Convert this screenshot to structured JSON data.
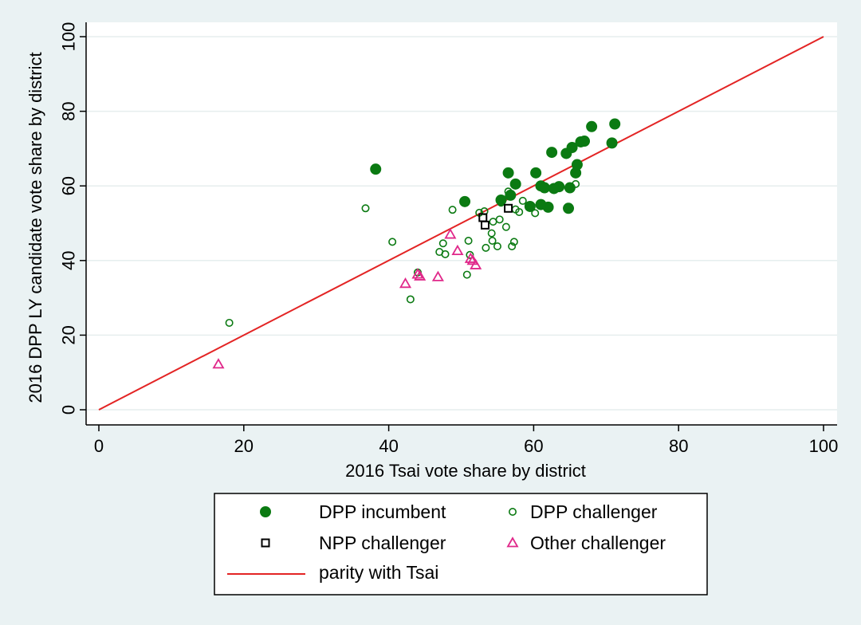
{
  "chart_data": {
    "type": "scatter",
    "title": "",
    "xlabel": "2016 Tsai vote share by district",
    "ylabel": "2016 DPP LY candidate vote share by district",
    "xlim": [
      0,
      100
    ],
    "ylim": [
      0,
      100
    ],
    "xticks": [
      "0",
      "20",
      "40",
      "60",
      "80",
      "100"
    ],
    "yticks": [
      "0",
      "20",
      "40",
      "60",
      "80",
      "100"
    ],
    "grid": "horizontal",
    "legend_position": "bottom",
    "colors": {
      "background": "#eaf2f3",
      "plot_background": "#ffffff",
      "dpp": "#0b7a12",
      "npp": "#000000",
      "other": "#e0288a",
      "parity": "#e32424"
    },
    "series": [
      {
        "name": "DPP incumbent",
        "marker": "filled-circle",
        "points": [
          [
            38.2,
            64.5
          ],
          [
            50.5,
            55.8
          ],
          [
            55.5,
            56.2
          ],
          [
            56.5,
            63.5
          ],
          [
            57.5,
            60.5
          ],
          [
            56.8,
            57.5
          ],
          [
            60.3,
            63.5
          ],
          [
            61.0,
            60.0
          ],
          [
            61.5,
            59.5
          ],
          [
            62.0,
            54.3
          ],
          [
            59.5,
            54.5
          ],
          [
            61.0,
            55.0
          ],
          [
            62.5,
            69.0
          ],
          [
            63.5,
            59.8
          ],
          [
            62.8,
            59.3
          ],
          [
            64.5,
            68.7
          ],
          [
            65.3,
            70.3
          ],
          [
            65.0,
            59.5
          ],
          [
            64.8,
            54.0
          ],
          [
            65.8,
            63.5
          ],
          [
            66.0,
            65.7
          ],
          [
            66.5,
            71.8
          ],
          [
            67.0,
            72.0
          ],
          [
            68.0,
            75.9
          ],
          [
            70.8,
            71.5
          ],
          [
            71.2,
            76.6
          ]
        ]
      },
      {
        "name": "DPP challenger",
        "marker": "hollow-circle",
        "points": [
          [
            18.0,
            23.3
          ],
          [
            36.8,
            54.0
          ],
          [
            40.5,
            45.0
          ],
          [
            43.0,
            29.6
          ],
          [
            44.0,
            36.8
          ],
          [
            47.0,
            42.3
          ],
          [
            47.5,
            44.6
          ],
          [
            47.8,
            41.7
          ],
          [
            48.8,
            53.6
          ],
          [
            50.8,
            36.2
          ],
          [
            51.0,
            45.3
          ],
          [
            51.2,
            41.5
          ],
          [
            52.5,
            52.8
          ],
          [
            53.2,
            53.2
          ],
          [
            53.4,
            43.4
          ],
          [
            54.2,
            47.3
          ],
          [
            54.3,
            45.3
          ],
          [
            54.4,
            50.4
          ],
          [
            55.0,
            43.8
          ],
          [
            55.3,
            51.0
          ],
          [
            55.5,
            55.5
          ],
          [
            56.2,
            49.0
          ],
          [
            56.5,
            58.5
          ],
          [
            57.0,
            43.8
          ],
          [
            57.3,
            45.0
          ],
          [
            57.5,
            53.7
          ],
          [
            58.0,
            53.0
          ],
          [
            58.5,
            56.0
          ],
          [
            60.2,
            52.7
          ],
          [
            65.8,
            60.5
          ]
        ]
      },
      {
        "name": "NPP challenger",
        "marker": "hollow-square",
        "points": [
          [
            53.0,
            51.5
          ],
          [
            53.3,
            49.5
          ],
          [
            56.5,
            54.0
          ]
        ]
      },
      {
        "name": "Other challenger",
        "marker": "hollow-triangle",
        "points": [
          [
            16.5,
            12.2
          ],
          [
            42.3,
            33.8
          ],
          [
            44.0,
            36.3
          ],
          [
            44.3,
            35.8
          ],
          [
            46.8,
            35.6
          ],
          [
            48.5,
            47.0
          ],
          [
            49.5,
            42.6
          ],
          [
            51.3,
            40.5
          ],
          [
            51.6,
            40.0
          ],
          [
            52.0,
            38.8
          ]
        ]
      },
      {
        "name": "parity with Tsai",
        "marker": "line",
        "points": [
          [
            0,
            0
          ],
          [
            100,
            100
          ]
        ]
      }
    ]
  }
}
